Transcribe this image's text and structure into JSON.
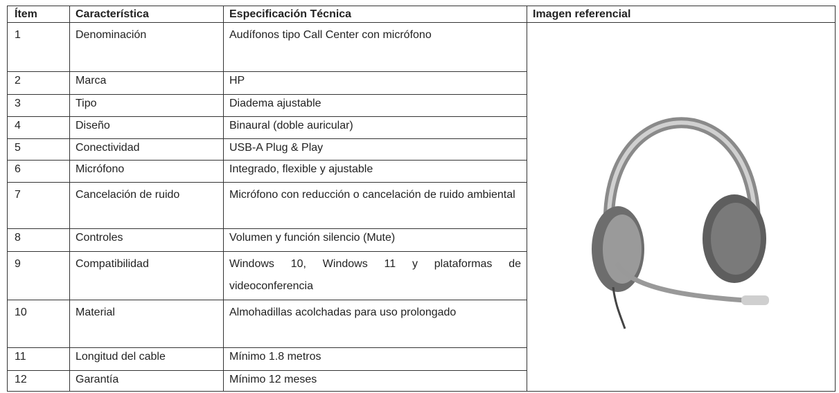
{
  "table": {
    "header": [
      "Ítem",
      "Característica",
      "Especificación Técnica",
      "Imagen referencial"
    ],
    "rows": [
      [
        "1",
        "Denominación",
        "Audífonos tipo Call Center con micrófono"
      ],
      [
        "2",
        "Marca",
        "HP"
      ],
      [
        "3",
        "Tipo",
        "Diadema ajustable"
      ],
      [
        "4",
        "Diseño",
        "Binaural (doble auricular)"
      ],
      [
        "5",
        "Conectividad",
        "USB-A Plug & Play"
      ],
      [
        "6",
        "Micrófono",
        "Integrado, flexible y ajustable"
      ],
      [
        "7",
        "Cancelación de ruido",
        "Micrófono con reducción o cancelación de ruido ambiental"
      ],
      [
        "8",
        "Controles",
        "Volumen y función silencio (Mute)"
      ],
      [
        "9",
        "Compatibilidad",
        "Windows 10, Windows 11 y plataformas de videoconferencia"
      ],
      [
        "10",
        "Material",
        "Almohadillas acolchadas para uso prolongado"
      ],
      [
        "11",
        "Longitud del cable",
        "Mínimo 1.8 metros"
      ],
      [
        "12",
        "Garantía",
        "Mínimo 12 meses"
      ]
    ]
  }
}
